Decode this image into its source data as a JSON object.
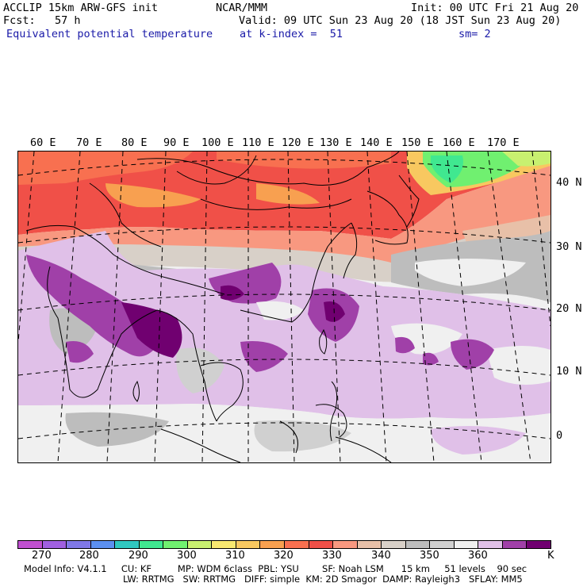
{
  "header": {
    "line1_left": "ACCLIP 15km ARW-GFS init",
    "line1_mid": "NCAR/MMM",
    "line1_right": "Init: 00 UTC Fri 21 Aug 20",
    "line2_left": "Fcst:   57 h",
    "line2_right": "Valid: 09 UTC Sun 23 Aug 20 (18 JST Sun 23 Aug 20)",
    "line3_left": "Equivalent potential temperature",
    "line3_mid": "at k-index =  51",
    "line3_right": "sm= 2"
  },
  "map": {
    "lon_labels": [
      "60 E",
      "70 E",
      "80 E",
      "90 E",
      "100 E",
      "110 E",
      "120 E",
      "130 E",
      "140 E",
      "150 E",
      "160 E",
      "170 E"
    ],
    "lat_labels": [
      "40 N",
      "30 N",
      "20 N",
      "10 N",
      "0"
    ]
  },
  "colorbar": {
    "colors": [
      "#c050d0",
      "#a060e0",
      "#8078e8",
      "#5c90f0",
      "#30c8c0",
      "#40e890",
      "#70f070",
      "#c8f070",
      "#f8e870",
      "#f8c860",
      "#f8a050",
      "#f87050",
      "#f05048",
      "#f89880",
      "#e8c0a8",
      "#d8d0c8",
      "#bdbdbd",
      "#d0d0d0",
      "#f0f0f0",
      "#e0c0e8",
      "#a040a8",
      "#700070"
    ],
    "labels": [
      "270",
      "280",
      "290",
      "300",
      "310",
      "320",
      "330",
      "340",
      "350",
      "360"
    ],
    "unit": "K"
  },
  "footer": {
    "line1": "Model Info: V4.1.1     CU: KF         MP: WDM 6class  PBL: YSU        SF: Noah LSM      15 km     51 levels    90 sec",
    "line2": "LW: RRTMG   SW: RRTMG   DIFF: simple  KM: 2D Smagor  DAMP: Rayleigh3   SFLAY: MM5"
  }
}
